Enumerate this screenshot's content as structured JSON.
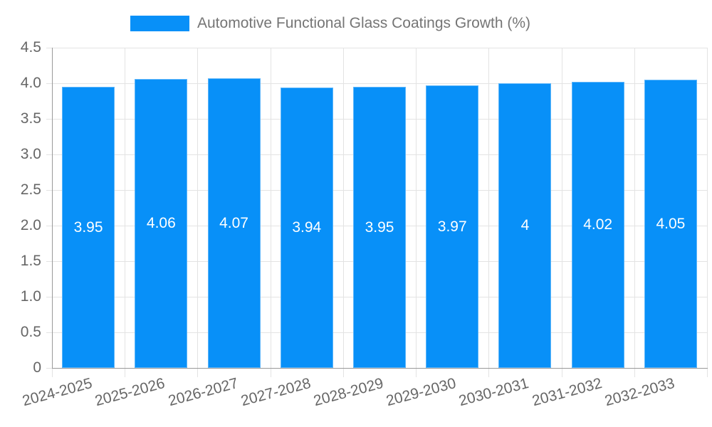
{
  "chart_data": {
    "type": "bar",
    "legend_entries": [
      "Automotive Functional Glass Coatings Growth (%)"
    ],
    "legend_position": "top",
    "categories": [
      "2024-2025",
      "2025-2026",
      "2026-2027",
      "2027-2028",
      "2028-2029",
      "2029-2030",
      "2030-2031",
      "2031-2032",
      "2032-2033"
    ],
    "values": [
      3.95,
      4.06,
      4.07,
      3.94,
      3.95,
      3.97,
      4,
      4.02,
      4.05
    ],
    "value_labels": [
      "3.95",
      "4.06",
      "4.07",
      "3.94",
      "3.95",
      "3.97",
      "4",
      "4.02",
      "4.05"
    ],
    "ylabel": "",
    "xlabel": "",
    "ylim": [
      0,
      4.5
    ],
    "y_tick_step": 0.5,
    "y_tick_labels": [
      "4.5",
      "4.0",
      "3.5",
      "3.0",
      "2.5",
      "2.0",
      "1.5",
      "1.0",
      "0.5",
      "0"
    ],
    "grid": true,
    "colors": {
      "bar": "#0890F8",
      "grid": "#E3E3E3",
      "axis": "#999999",
      "tick_label": "#666666",
      "legend_text": "#757575",
      "value_label": "#FFFFFF",
      "background": "#FFFFFF"
    }
  }
}
